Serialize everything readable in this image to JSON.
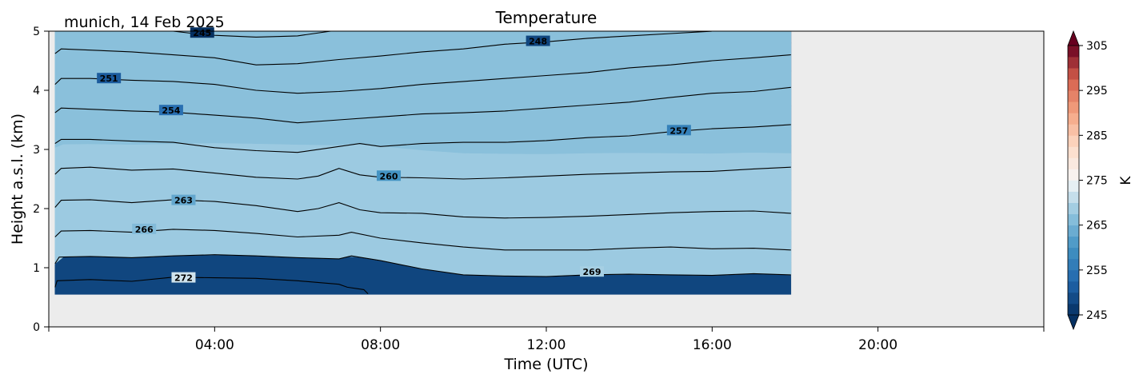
{
  "chart_data": {
    "type": "heatmap",
    "title": "Temperature",
    "subtitle": "munich, 14 Feb 2025",
    "xlabel": "Time (UTC)",
    "ylabel": "Height a.s.l. (km)",
    "x_ticks": [
      "04:00",
      "08:00",
      "12:00",
      "16:00",
      "20:00"
    ],
    "y_ticks": [
      "0",
      "1",
      "2",
      "3",
      "4",
      "5"
    ],
    "xlim_hours": [
      0,
      24
    ],
    "ylim_km": [
      0,
      5
    ],
    "data_extent": {
      "t_start_hours": 0.15,
      "t_end_hours": 17.9,
      "h_bottom_km": 0.55,
      "h_top_km": 5.0
    },
    "missing_color": "#ececec",
    "colorbar": {
      "label": "K",
      "ticks": [
        "305",
        "295",
        "285",
        "275",
        "265",
        "255",
        "245"
      ],
      "range": [
        245,
        305
      ],
      "extend": "both",
      "colormap": "RdBu_r"
    },
    "contours": [
      {
        "level": 272,
        "points": [
          [
            0.15,
            0.67
          ],
          [
            0.2,
            0.78
          ],
          [
            1,
            0.8
          ],
          [
            2,
            0.77
          ],
          [
            3,
            0.84
          ],
          [
            4,
            0.83
          ],
          [
            5,
            0.82
          ],
          [
            6,
            0.78
          ],
          [
            7,
            0.72
          ],
          [
            7.2,
            0.67
          ],
          [
            7.6,
            0.63
          ],
          [
            7.7,
            0.56
          ]
        ]
      },
      {
        "level": 269,
        "points": [
          [
            0.15,
            1.07
          ],
          [
            0.25,
            1.18
          ],
          [
            1,
            1.19
          ],
          [
            2,
            1.17
          ],
          [
            3,
            1.2
          ],
          [
            4,
            1.22
          ],
          [
            5,
            1.2
          ],
          [
            6,
            1.17
          ],
          [
            7,
            1.15
          ],
          [
            7.3,
            1.2
          ],
          [
            8,
            1.12
          ],
          [
            9,
            0.98
          ],
          [
            10,
            0.88
          ],
          [
            11,
            0.86
          ],
          [
            12,
            0.85
          ],
          [
            13,
            0.88
          ],
          [
            14,
            0.89
          ],
          [
            15,
            0.88
          ],
          [
            16,
            0.87
          ],
          [
            17,
            0.9
          ],
          [
            17.9,
            0.88
          ]
        ]
      },
      {
        "level": 266,
        "points": [
          [
            0.15,
            1.52
          ],
          [
            0.3,
            1.62
          ],
          [
            1,
            1.63
          ],
          [
            2,
            1.6
          ],
          [
            3,
            1.65
          ],
          [
            4,
            1.63
          ],
          [
            5,
            1.58
          ],
          [
            6,
            1.52
          ],
          [
            7,
            1.55
          ],
          [
            7.3,
            1.6
          ],
          [
            8,
            1.5
          ],
          [
            9,
            1.42
          ],
          [
            10,
            1.35
          ],
          [
            11,
            1.3
          ],
          [
            12,
            1.3
          ],
          [
            13,
            1.3
          ],
          [
            14,
            1.33
          ],
          [
            15,
            1.35
          ],
          [
            16,
            1.32
          ],
          [
            17,
            1.33
          ],
          [
            17.9,
            1.3
          ]
        ]
      },
      {
        "level": 263,
        "points": [
          [
            0.15,
            2.02
          ],
          [
            0.3,
            2.14
          ],
          [
            1,
            2.15
          ],
          [
            2,
            2.1
          ],
          [
            3,
            2.15
          ],
          [
            4,
            2.12
          ],
          [
            5,
            2.05
          ],
          [
            6,
            1.95
          ],
          [
            6.5,
            2.0
          ],
          [
            7,
            2.1
          ],
          [
            7.5,
            1.98
          ],
          [
            8,
            1.93
          ],
          [
            9,
            1.92
          ],
          [
            10,
            1.86
          ],
          [
            11,
            1.84
          ],
          [
            12,
            1.85
          ],
          [
            13,
            1.87
          ],
          [
            14,
            1.9
          ],
          [
            15,
            1.93
          ],
          [
            16,
            1.95
          ],
          [
            17,
            1.96
          ],
          [
            17.9,
            1.92
          ]
        ]
      },
      {
        "level": 260,
        "points": [
          [
            0.15,
            2.58
          ],
          [
            0.3,
            2.68
          ],
          [
            1,
            2.7
          ],
          [
            2,
            2.65
          ],
          [
            3,
            2.67
          ],
          [
            4,
            2.6
          ],
          [
            5,
            2.53
          ],
          [
            6,
            2.5
          ],
          [
            6.5,
            2.55
          ],
          [
            7,
            2.68
          ],
          [
            7.5,
            2.57
          ],
          [
            8,
            2.53
          ],
          [
            9,
            2.52
          ],
          [
            10,
            2.5
          ],
          [
            11,
            2.52
          ],
          [
            12,
            2.55
          ],
          [
            13,
            2.58
          ],
          [
            14,
            2.6
          ],
          [
            15,
            2.62
          ],
          [
            16,
            2.63
          ],
          [
            17,
            2.67
          ],
          [
            17.9,
            2.7
          ]
        ]
      },
      {
        "level": 257,
        "points": [
          [
            0.15,
            3.1
          ],
          [
            0.3,
            3.17
          ],
          [
            1,
            3.17
          ],
          [
            2,
            3.14
          ],
          [
            3,
            3.12
          ],
          [
            4,
            3.03
          ],
          [
            5,
            2.98
          ],
          [
            6,
            2.95
          ],
          [
            7,
            3.05
          ],
          [
            7.5,
            3.1
          ],
          [
            8,
            3.05
          ],
          [
            9,
            3.1
          ],
          [
            10,
            3.12
          ],
          [
            11,
            3.12
          ],
          [
            12,
            3.15
          ],
          [
            13,
            3.2
          ],
          [
            14,
            3.23
          ],
          [
            15,
            3.3
          ],
          [
            16,
            3.35
          ],
          [
            17,
            3.38
          ],
          [
            17.9,
            3.42
          ]
        ]
      },
      {
        "level": 254,
        "points": [
          [
            0.15,
            3.62
          ],
          [
            0.3,
            3.7
          ],
          [
            1,
            3.68
          ],
          [
            2,
            3.65
          ],
          [
            3,
            3.63
          ],
          [
            4,
            3.58
          ],
          [
            5,
            3.53
          ],
          [
            6,
            3.45
          ],
          [
            7,
            3.5
          ],
          [
            8,
            3.55
          ],
          [
            9,
            3.6
          ],
          [
            10,
            3.62
          ],
          [
            11,
            3.65
          ],
          [
            12,
            3.7
          ],
          [
            13,
            3.75
          ],
          [
            14,
            3.8
          ],
          [
            15,
            3.88
          ],
          [
            16,
            3.95
          ],
          [
            17,
            3.98
          ],
          [
            17.9,
            4.05
          ]
        ]
      },
      {
        "level": 251,
        "points": [
          [
            0.15,
            4.1
          ],
          [
            0.3,
            4.2
          ],
          [
            1,
            4.2
          ],
          [
            2,
            4.17
          ],
          [
            3,
            4.15
          ],
          [
            4,
            4.1
          ],
          [
            5,
            4.0
          ],
          [
            6,
            3.95
          ],
          [
            7,
            3.98
          ],
          [
            8,
            4.03
          ],
          [
            9,
            4.1
          ],
          [
            10,
            4.15
          ],
          [
            11,
            4.2
          ],
          [
            12,
            4.25
          ],
          [
            13,
            4.3
          ],
          [
            14,
            4.38
          ],
          [
            15,
            4.43
          ],
          [
            16,
            4.5
          ],
          [
            17,
            4.55
          ],
          [
            17.9,
            4.6
          ]
        ]
      },
      {
        "level": 248,
        "points": [
          [
            0.15,
            4.62
          ],
          [
            0.3,
            4.7
          ],
          [
            1,
            4.68
          ],
          [
            2,
            4.65
          ],
          [
            3,
            4.6
          ],
          [
            4,
            4.55
          ],
          [
            5,
            4.43
          ],
          [
            6,
            4.45
          ],
          [
            7,
            4.52
          ],
          [
            8,
            4.58
          ],
          [
            9,
            4.65
          ],
          [
            10,
            4.7
          ],
          [
            11,
            4.78
          ],
          [
            12,
            4.82
          ],
          [
            13,
            4.88
          ],
          [
            14,
            4.92
          ],
          [
            15,
            4.96
          ],
          [
            16,
            5.0
          ]
        ]
      },
      {
        "level": 245,
        "points": [
          [
            3,
            5.0
          ],
          [
            3.5,
            4.96
          ],
          [
            4,
            4.93
          ],
          [
            5,
            4.9
          ],
          [
            6,
            4.92
          ],
          [
            6.8,
            5.0
          ]
        ]
      }
    ],
    "contour_labels": [
      {
        "text": "245",
        "x": 3.7,
        "y": 4.97
      },
      {
        "text": "248",
        "x": 11.8,
        "y": 4.83
      },
      {
        "text": "251",
        "x": 1.45,
        "y": 4.2
      },
      {
        "text": "254",
        "x": 2.95,
        "y": 3.66
      },
      {
        "text": "257",
        "x": 15.2,
        "y": 3.32
      },
      {
        "text": "260",
        "x": 8.2,
        "y": 2.55
      },
      {
        "text": "263",
        "x": 3.25,
        "y": 2.14
      },
      {
        "text": "266",
        "x": 2.3,
        "y": 1.65
      },
      {
        "text": "269",
        "x": 13.1,
        "y": 0.93
      },
      {
        "text": "272",
        "x": 3.25,
        "y": 0.83
      }
    ]
  }
}
